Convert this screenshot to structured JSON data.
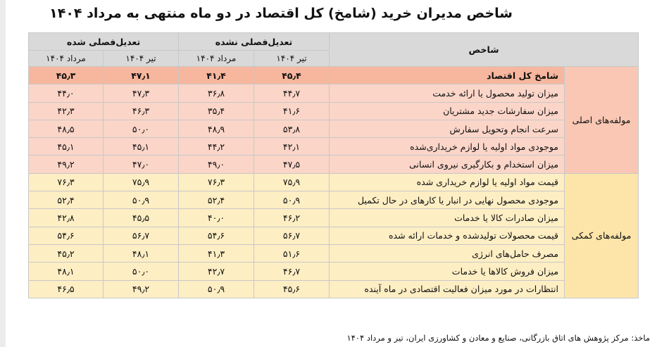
{
  "title": "شاخص مدیران خرید (شامخ) کل اقتصاد در دو ماه منتهی به مرداد ۱۴۰۴",
  "headers": {
    "index": "شاخص",
    "unadjusted": "تعدیل‌فصلی نشده",
    "adjusted": "تعدیل‌فصلی شده",
    "tir": "تیر ۱۴۰۴",
    "mordad": "مرداد ۱۴۰۴"
  },
  "groups": {
    "main": "مولفه‌های اصلی",
    "aux": "مولفه‌های کمکی"
  },
  "rows": [
    {
      "name": "شامخ  کل اقتصاد",
      "u_tir": "۴۵٫۴",
      "u_mordad": "۴۱٫۴",
      "a_tir": "۴۷٫۱",
      "a_mordad": "۴۵٫۳"
    },
    {
      "name": "میزان تولید محصول یا ارائه خدمت",
      "u_tir": "۴۴٫۷",
      "u_mordad": "۳۶٫۸",
      "a_tir": "۴۷٫۳",
      "a_mordad": "۴۴٫۰"
    },
    {
      "name": "میزان سفارشات جدید مشتریان",
      "u_tir": "۴۱٫۶",
      "u_mordad": "۳۵٫۴",
      "a_tir": "۴۶٫۳",
      "a_mordad": "۴۲٫۳"
    },
    {
      "name": "سرعت انجام وتحویل سفارش",
      "u_tir": "۵۳٫۸",
      "u_mordad": "۴۸٫۹",
      "a_tir": "۵۰٫۰",
      "a_mordad": "۴۸٫۵"
    },
    {
      "name": "موجودی مواد اولیه یا لوازم خریداری‌شده",
      "u_tir": "۴۲٫۱",
      "u_mordad": "۴۴٫۲",
      "a_tir": "۴۵٫۱",
      "a_mordad": "۴۵٫۱"
    },
    {
      "name": "میزان استخدام و بکارگیری نیروی انسانی",
      "u_tir": "۴۷٫۵",
      "u_mordad": "۴۹٫۰",
      "a_tir": "۴۷٫۰",
      "a_mordad": "۴۹٫۲"
    },
    {
      "name": "قیمت مواد اولیه یا لوازم خریداری شده",
      "u_tir": "۷۵٫۹",
      "u_mordad": "۷۶٫۳",
      "a_tir": "۷۵٫۹",
      "a_mordad": "۷۶٫۳"
    },
    {
      "name": "موجودی محصول نهایی در انبار یا کارهای در حال تکمیل",
      "u_tir": "۵۰٫۹",
      "u_mordad": "۵۲٫۴",
      "a_tir": "۵۰٫۹",
      "a_mordad": "۵۲٫۴"
    },
    {
      "name": "میزان صادرات کالا یا خدمات",
      "u_tir": "۴۶٫۲",
      "u_mordad": "۴۰٫۰",
      "a_tir": "۴۵٫۵",
      "a_mordad": "۴۲٫۸"
    },
    {
      "name": "قیمت محصولات تولیدشده و خدمات ارائه شده",
      "u_tir": "۵۶٫۷",
      "u_mordad": "۵۴٫۶",
      "a_tir": "۵۶٫۷",
      "a_mordad": "۵۴٫۶"
    },
    {
      "name": "مصرف حامل‌های انرژی",
      "u_tir": "۵۱٫۶",
      "u_mordad": "۴۱٫۳",
      "a_tir": "۴۸٫۱",
      "a_mordad": "۴۵٫۲"
    },
    {
      "name": "میزان فروش کالاها یا خدمات",
      "u_tir": "۴۶٫۷",
      "u_mordad": "۴۲٫۷",
      "a_tir": "۵۰٫۰",
      "a_mordad": "۴۸٫۱"
    },
    {
      "name": "انتظارات در مورد میزان فعالیت اقتصادی در ماه آینده",
      "u_tir": "۴۵٫۶",
      "u_mordad": "۵۰٫۹",
      "a_tir": "۴۹٫۲",
      "a_mordad": "۴۶٫۵"
    }
  ],
  "source": "ماخذ: مرکز پژوهش های اتاق بازرگانی، صنایع و معادن و کشاورزی ایران، تیر و مرداد ۱۴۰۴"
}
